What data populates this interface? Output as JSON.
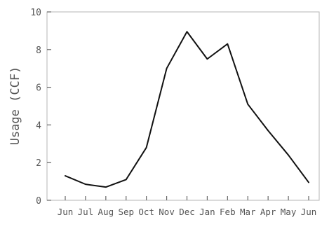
{
  "chart_data": {
    "type": "line",
    "title": "",
    "xlabel": "",
    "ylabel": "Usage (CCF)",
    "categories": [
      "Jun",
      "Jul",
      "Aug",
      "Sep",
      "Oct",
      "Nov",
      "Dec",
      "Jan",
      "Feb",
      "Mar",
      "Apr",
      "May",
      "Jun"
    ],
    "series": [
      {
        "values": [
          1.3,
          0.85,
          0.7,
          1.1,
          2.8,
          7.0,
          8.95,
          7.5,
          8.3,
          5.1,
          3.7,
          2.4,
          0.95
        ]
      }
    ],
    "ylim": [
      0,
      10
    ],
    "yticks": [
      0,
      2,
      4,
      6,
      8,
      10
    ],
    "ytick_labels": [
      "0",
      "2",
      "4",
      "6",
      "8",
      "10"
    ],
    "grid": false,
    "legend": "none",
    "colors": {
      "line": "#111111",
      "frame": "#b5b5b5",
      "text": "#555555"
    }
  }
}
